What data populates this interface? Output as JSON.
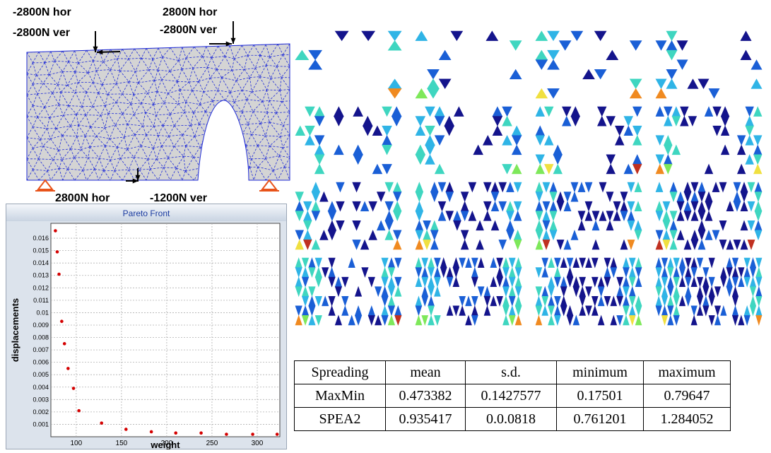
{
  "mesh": {
    "loads": [
      {
        "id": "top-left-hor",
        "text": "-2800N hor"
      },
      {
        "id": "top-left-ver",
        "text": "-2800N ver"
      },
      {
        "id": "top-right-hor",
        "text": "2800N hor"
      },
      {
        "id": "top-right-ver",
        "text": "-2800N ver"
      },
      {
        "id": "bottom-hor",
        "text": "2800N hor"
      },
      {
        "id": "bottom-ver",
        "text": "-1200N ver"
      }
    ],
    "mesh_color": "#1f2bd6",
    "fill_color": "#d4d4d4",
    "support_color": "#e8531a"
  },
  "chart_data": {
    "type": "scatter",
    "title": "Pareto Front",
    "xlabel": "weight",
    "ylabel": "displacements",
    "xlim": [
      72,
      325
    ],
    "ylim": [
      0,
      0.0172
    ],
    "xticks": [
      100,
      150,
      200,
      250,
      300
    ],
    "yticks": [
      0.001,
      0.002,
      0.003,
      0.004,
      0.005,
      0.006,
      0.007,
      0.008,
      0.009,
      0.01,
      0.011,
      0.012,
      0.013,
      0.014,
      0.015,
      0.016
    ],
    "grid": true,
    "point_color": "#d40000",
    "x": [
      77,
      79,
      81,
      84,
      87,
      91,
      97,
      103,
      128,
      155,
      183,
      210,
      238,
      266,
      295,
      322
    ],
    "y": [
      0.0166,
      0.0149,
      0.0131,
      0.0093,
      0.0075,
      0.0055,
      0.0039,
      0.0021,
      0.0011,
      0.0006,
      0.0004,
      0.0003,
      0.0003,
      0.0002,
      0.0002,
      0.0002
    ]
  },
  "stats_table": {
    "headers": [
      "Spreading",
      "mean",
      "s.d.",
      "minimum",
      "maximum"
    ],
    "rows": [
      [
        "MaxMin",
        "0.473382",
        "0.1427577",
        "0.17501",
        "0.79647"
      ],
      [
        "SPEA2",
        "0.935417",
        "0.0.0818",
        "0.761201",
        "1.284052"
      ]
    ]
  },
  "topologies": {
    "rows": 4,
    "cols": 4,
    "structure_color": "#14148c",
    "stress_colors": [
      "#1a5fd6",
      "#2fb4e6",
      "#3fd6c0",
      "#7ee85a",
      "#f0e040",
      "#f08a20",
      "#c03020"
    ]
  }
}
